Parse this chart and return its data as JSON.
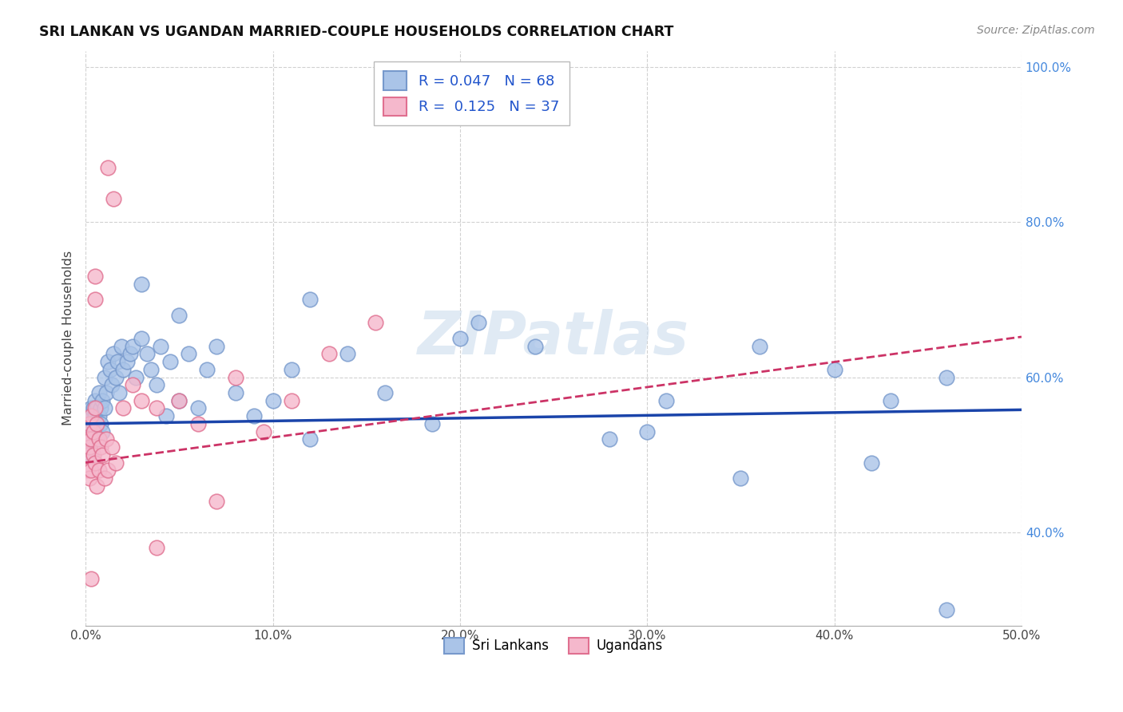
{
  "title": "SRI LANKAN VS UGANDAN MARRIED-COUPLE HOUSEHOLDS CORRELATION CHART",
  "source": "Source: ZipAtlas.com",
  "ylabel": "Married-couple Households",
  "xlim": [
    0.0,
    0.5
  ],
  "ylim": [
    0.28,
    1.02
  ],
  "xticks": [
    0.0,
    0.1,
    0.2,
    0.3,
    0.4,
    0.5
  ],
  "yticks": [
    0.4,
    0.6,
    0.8,
    1.0
  ],
  "ytick_labels": [
    "40.0%",
    "60.0%",
    "80.0%",
    "100.0%"
  ],
  "xtick_labels": [
    "0.0%",
    "10.0%",
    "20.0%",
    "30.0%",
    "40.0%",
    "50.0%"
  ],
  "legend_blue_label": "R = 0.047   N = 68",
  "legend_pink_label": "R =  0.125   N = 37",
  "legend_sri_lankans": "Sri Lankans",
  "legend_ugandans": "Ugandans",
  "blue_color": "#aac4e8",
  "blue_edge": "#7799cc",
  "pink_color": "#f5b8cc",
  "pink_edge": "#e07090",
  "blue_line_color": "#1a44aa",
  "pink_line_color": "#cc3366",
  "watermark": "ZIPatlas",
  "blue_points_x": [
    0.001,
    0.001,
    0.002,
    0.002,
    0.002,
    0.003,
    0.003,
    0.003,
    0.003,
    0.004,
    0.004,
    0.004,
    0.005,
    0.005,
    0.005,
    0.006,
    0.006,
    0.006,
    0.007,
    0.007,
    0.008,
    0.008,
    0.009,
    0.009,
    0.01,
    0.01,
    0.011,
    0.012,
    0.013,
    0.014,
    0.015,
    0.016,
    0.017,
    0.018,
    0.019,
    0.02,
    0.022,
    0.024,
    0.025,
    0.027,
    0.03,
    0.033,
    0.035,
    0.038,
    0.04,
    0.043,
    0.045,
    0.05,
    0.055,
    0.06,
    0.065,
    0.07,
    0.08,
    0.09,
    0.1,
    0.11,
    0.12,
    0.14,
    0.16,
    0.185,
    0.21,
    0.24,
    0.28,
    0.31,
    0.36,
    0.4,
    0.43,
    0.46
  ],
  "blue_points_y": [
    0.54,
    0.52,
    0.55,
    0.51,
    0.53,
    0.55,
    0.52,
    0.56,
    0.5,
    0.54,
    0.56,
    0.52,
    0.55,
    0.53,
    0.57,
    0.54,
    0.56,
    0.52,
    0.55,
    0.58,
    0.54,
    0.56,
    0.57,
    0.53,
    0.6,
    0.56,
    0.58,
    0.62,
    0.61,
    0.59,
    0.63,
    0.6,
    0.62,
    0.58,
    0.64,
    0.61,
    0.62,
    0.63,
    0.64,
    0.6,
    0.65,
    0.63,
    0.61,
    0.59,
    0.64,
    0.55,
    0.62,
    0.57,
    0.63,
    0.56,
    0.61,
    0.64,
    0.58,
    0.55,
    0.57,
    0.61,
    0.52,
    0.63,
    0.58,
    0.54,
    0.67,
    0.64,
    0.52,
    0.57,
    0.64,
    0.61,
    0.57,
    0.6
  ],
  "pink_points_x": [
    0.001,
    0.001,
    0.001,
    0.002,
    0.002,
    0.002,
    0.003,
    0.003,
    0.003,
    0.004,
    0.004,
    0.005,
    0.005,
    0.006,
    0.006,
    0.007,
    0.007,
    0.008,
    0.009,
    0.01,
    0.011,
    0.012,
    0.014,
    0.016,
    0.02,
    0.025,
    0.03,
    0.038,
    0.038,
    0.05,
    0.06,
    0.07,
    0.08,
    0.095,
    0.11,
    0.13,
    0.155
  ],
  "pink_points_y": [
    0.52,
    0.5,
    0.48,
    0.54,
    0.51,
    0.47,
    0.55,
    0.52,
    0.48,
    0.53,
    0.5,
    0.56,
    0.49,
    0.54,
    0.46,
    0.52,
    0.48,
    0.51,
    0.5,
    0.47,
    0.52,
    0.48,
    0.51,
    0.49,
    0.56,
    0.59,
    0.57,
    0.38,
    0.56,
    0.57,
    0.54,
    0.44,
    0.6,
    0.53,
    0.57,
    0.63,
    0.67
  ],
  "blue_trend_x": [
    0.0,
    0.5
  ],
  "blue_trend_y": [
    0.54,
    0.558
  ],
  "pink_trend_x": [
    0.0,
    0.5
  ],
  "pink_trend_y": [
    0.49,
    0.652
  ],
  "background_color": "#ffffff",
  "grid_color": "#cccccc",
  "extra_blue": [
    [
      0.03,
      0.72
    ],
    [
      0.05,
      0.68
    ],
    [
      0.12,
      0.7
    ],
    [
      0.2,
      0.65
    ],
    [
      0.3,
      0.53
    ],
    [
      0.35,
      0.47
    ],
    [
      0.42,
      0.49
    ],
    [
      0.46,
      0.3
    ]
  ],
  "extra_pink": [
    [
      0.012,
      0.87
    ],
    [
      0.015,
      0.83
    ],
    [
      0.005,
      0.73
    ],
    [
      0.005,
      0.7
    ],
    [
      0.003,
      0.34
    ]
  ]
}
